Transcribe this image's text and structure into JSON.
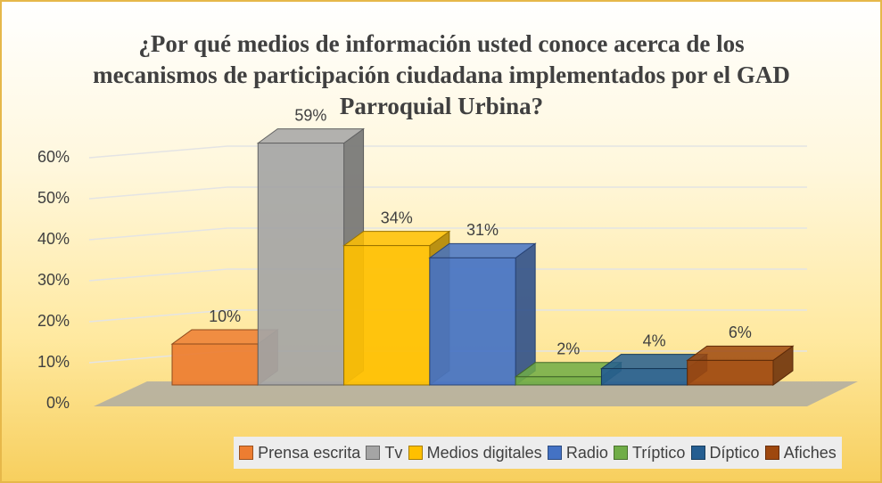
{
  "chart_data": {
    "type": "bar3d",
    "title": "¿Por qué medios de información usted conoce acerca de los mecanismos de participación ciudadana implementados por el GAD Parroquial Urbina?",
    "categories": [
      "Prensa escrita",
      "Tv",
      "Medios digitales",
      "Radio",
      "Tríptico",
      "Díptico",
      "Afiches"
    ],
    "values": [
      10,
      59,
      34,
      31,
      2,
      4,
      6
    ],
    "value_labels": [
      "10%",
      "59%",
      "34%",
      "31%",
      "2%",
      "4%",
      "6%"
    ],
    "colors": [
      "#ed7d31",
      "#a5a5a5",
      "#ffc000",
      "#4472c4",
      "#70ad47",
      "#255e91",
      "#9e480e"
    ],
    "ylim": [
      0,
      60
    ],
    "yticks": [
      {
        "value": 0,
        "label": "0%"
      },
      {
        "value": 10,
        "label": "10%"
      },
      {
        "value": 20,
        "label": "20%"
      },
      {
        "value": 30,
        "label": "30%"
      },
      {
        "value": 40,
        "label": "40%"
      },
      {
        "value": 50,
        "label": "50%"
      },
      {
        "value": 60,
        "label": "60%"
      }
    ],
    "grid": true,
    "legend": "bottom"
  }
}
